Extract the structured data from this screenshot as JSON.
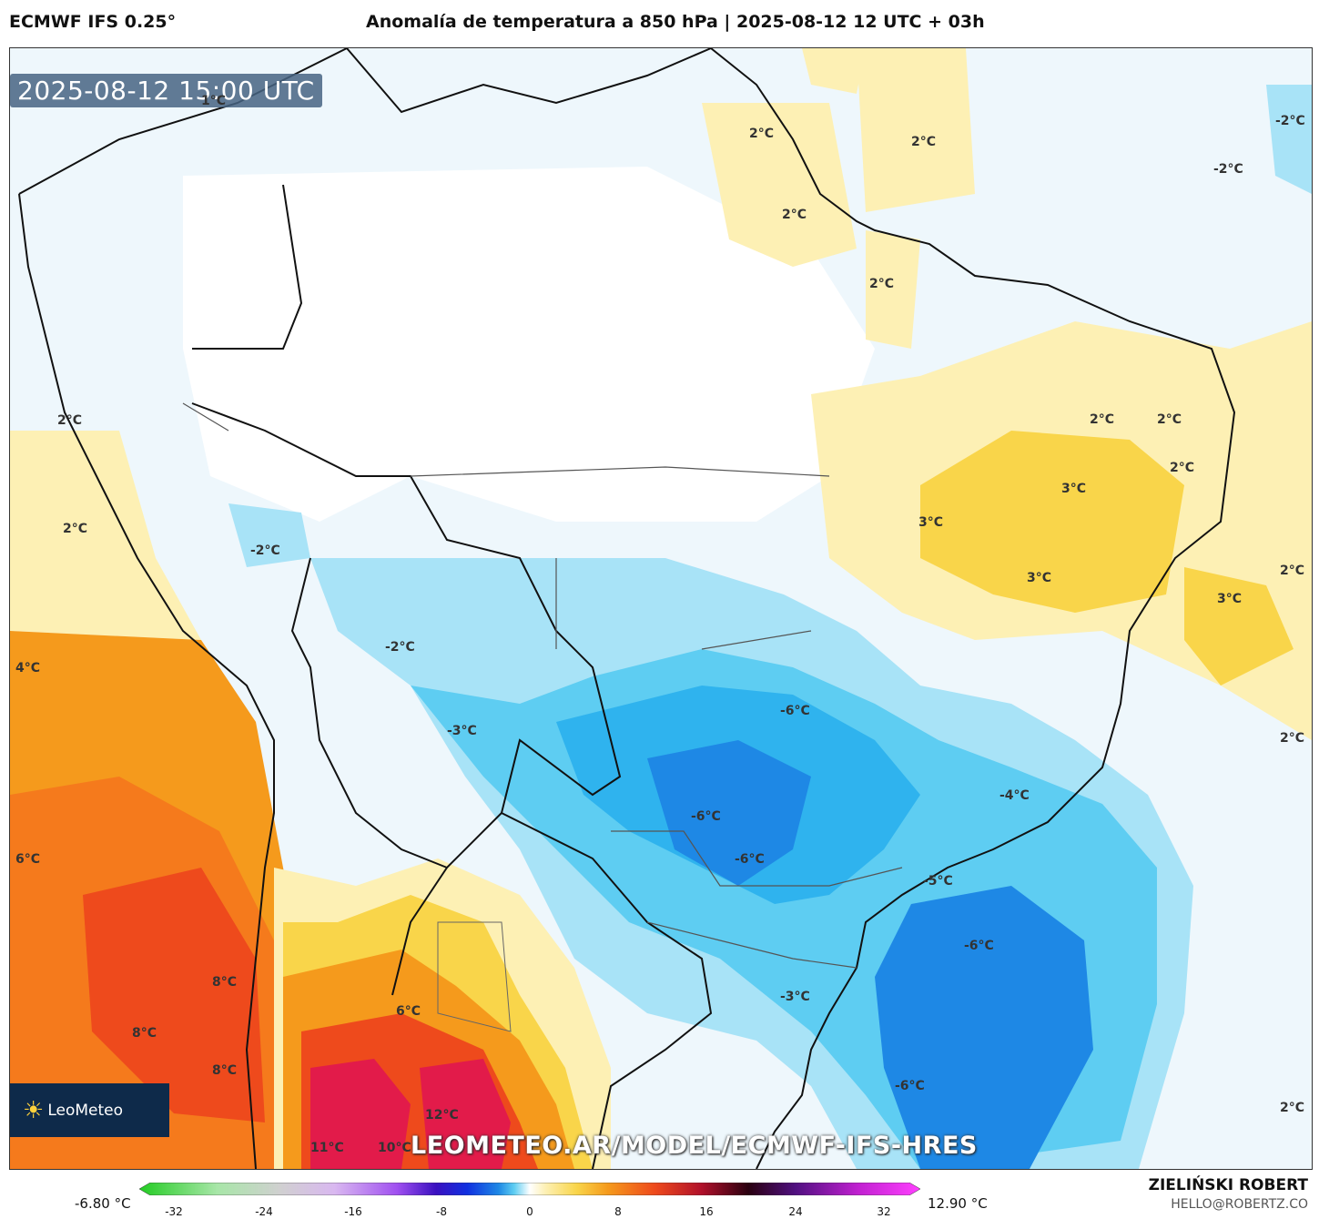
{
  "header": {
    "model": "ECMWF IFS 0.25°",
    "title": "Anomalía de temperatura a 850 hPa | 2025-08-12 12 UTC + 03h"
  },
  "map": {
    "timestamp": "2025-08-12 15:00 UTC",
    "watermark_url": "LEOMETEO.AR/MODEL/ECMWF-IFS-HRES",
    "logo_text": "LeoMeteo",
    "labels": [
      "1°C",
      "2°C",
      "2°C",
      "2°C",
      "-2°C",
      "-2°C",
      "2°C",
      "2°C",
      "2°C",
      "2°C",
      "2°C",
      "2°C",
      "3°C",
      "3°C",
      "3°C",
      "3°C",
      "2°C",
      "2°C",
      "-2°C",
      "-2°C",
      "4°C",
      "-3°C",
      "-6°C",
      "-6°C",
      "-6°C",
      "-4°C",
      "-5°C",
      "-6°C",
      "-3°C",
      "-6°C",
      "6°C",
      "8°C",
      "8°C",
      "8°C",
      "6°C",
      "12°C",
      "11°C",
      "10°C",
      "2°C",
      "2°C"
    ]
  },
  "colorbar": {
    "min_label": "-6.80 °C",
    "max_label": "12.90 °C",
    "ticks": [
      "-32",
      "-24",
      "-16",
      "-8",
      "0",
      "8",
      "16",
      "24",
      "32"
    ]
  },
  "footer": {
    "author": "ZIELIŃSKI ROBERT",
    "email": "HELLO@ROBERTZ.CO"
  },
  "colors": {
    "warm_light": "#fdf0b4",
    "warm_yellow": "#f9d54a",
    "warm_orange": "#f59a1c",
    "warm_red": "#ee4a1c",
    "hot": "#e21b4a",
    "cold_light": "#dff1fb",
    "cold_mid": "#8ad9f5",
    "cold_strong": "#2fb3ee",
    "cold_deep": "#1e88e5"
  }
}
